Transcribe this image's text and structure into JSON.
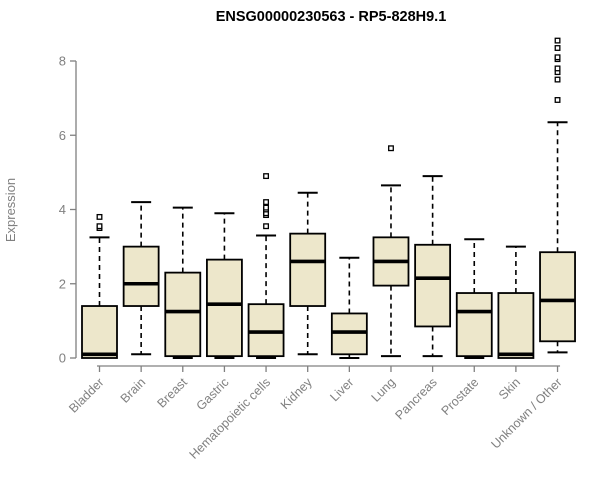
{
  "chart_data": {
    "type": "boxplot",
    "title": "ENSG00000230563 - RP5-828H9.1",
    "ylabel": "Expression",
    "xlabel": "",
    "ylim": [
      0,
      8
    ],
    "yticks": [
      0,
      2,
      4,
      6,
      8
    ],
    "grid": false,
    "legend": "none",
    "box_fill_color": "#EDE7CB",
    "box_line_color": "#000000",
    "axis_color": "#808080",
    "categories": [
      "Bladder",
      "Brain",
      "Breast",
      "Gastric",
      "Hematopoietic cells",
      "Kidney",
      "Liver",
      "Lung",
      "Pancreas",
      "Prostate",
      "Skin",
      "Unknown / Other"
    ],
    "series": [
      {
        "name": "Bladder",
        "whisker_low": 0,
        "q1": 0,
        "median": 0.1,
        "q3": 1.4,
        "whisker_high": 3.25,
        "outliers": [
          3.5,
          3.55,
          3.8
        ]
      },
      {
        "name": "Brain",
        "whisker_low": 0.1,
        "q1": 1.4,
        "median": 2.0,
        "q3": 3.0,
        "whisker_high": 4.2,
        "outliers": []
      },
      {
        "name": "Breast",
        "whisker_low": 0,
        "q1": 0.05,
        "median": 1.25,
        "q3": 2.3,
        "whisker_high": 4.05,
        "outliers": []
      },
      {
        "name": "Gastric",
        "whisker_low": 0,
        "q1": 0.05,
        "median": 1.45,
        "q3": 2.65,
        "whisker_high": 3.9,
        "outliers": []
      },
      {
        "name": "Hematopoietic cells",
        "whisker_low": 0,
        "q1": 0.05,
        "median": 0.7,
        "q3": 1.45,
        "whisker_high": 3.3,
        "outliers": [
          3.55,
          3.85,
          3.9,
          4.0,
          4.05,
          4.2,
          4.9
        ]
      },
      {
        "name": "Kidney",
        "whisker_low": 0.1,
        "q1": 1.4,
        "median": 2.6,
        "q3": 3.35,
        "whisker_high": 4.45,
        "outliers": []
      },
      {
        "name": "Liver",
        "whisker_low": 0,
        "q1": 0.1,
        "median": 0.7,
        "q3": 1.2,
        "whisker_high": 2.7,
        "outliers": []
      },
      {
        "name": "Lung",
        "whisker_low": 0.05,
        "q1": 1.95,
        "median": 2.6,
        "q3": 3.25,
        "whisker_high": 4.65,
        "outliers": [
          5.65
        ]
      },
      {
        "name": "Pancreas",
        "whisker_low": 0.05,
        "q1": 0.85,
        "median": 2.15,
        "q3": 3.05,
        "whisker_high": 4.9,
        "outliers": []
      },
      {
        "name": "Prostate",
        "whisker_low": 0,
        "q1": 0.05,
        "median": 1.25,
        "q3": 1.75,
        "whisker_high": 3.2,
        "outliers": []
      },
      {
        "name": "Skin",
        "whisker_low": 0,
        "q1": 0,
        "median": 0.1,
        "q3": 1.75,
        "whisker_high": 3.0,
        "outliers": []
      },
      {
        "name": "Unknown / Other",
        "whisker_low": 0.15,
        "q1": 0.45,
        "median": 1.55,
        "q3": 2.85,
        "whisker_high": 6.35,
        "outliers": [
          6.95,
          7.5,
          7.7,
          7.8,
          8.05,
          8.1,
          8.35,
          8.55
        ]
      }
    ]
  }
}
